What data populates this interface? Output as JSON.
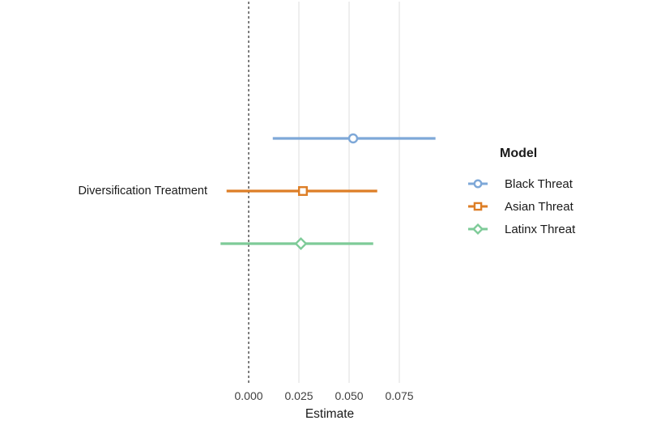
{
  "figure": {
    "background": "#ffffff"
  },
  "chart_data": {
    "type": "forest",
    "title": "",
    "xlabel": "Estimate",
    "ylabel": "",
    "categories": [
      "Diversification Treatment"
    ],
    "x_ticks": [
      0,
      0.025,
      0.05,
      0.075
    ],
    "x_tick_labels": [
      "0.000",
      "0.025",
      "0.050",
      "0.075"
    ],
    "xlim": [
      -0.018,
      0.1
    ],
    "zero_reference_line": 0,
    "grid": true,
    "grid_color": "#E5E5E5",
    "zero_line_color": "#2A2A2A",
    "text_color": "#1A1A1A",
    "tick_text_color": "#404040",
    "legend": {
      "title": "Model",
      "position": "right"
    },
    "series": [
      {
        "name": "Black Threat",
        "marker": "circle",
        "color": "#7EA8D8",
        "category": "Diversification Treatment",
        "estimate": 0.052,
        "ci_low": 0.012,
        "ci_high": 0.093
      },
      {
        "name": "Asian Threat",
        "marker": "square",
        "color": "#DD7E26",
        "category": "Diversification Treatment",
        "estimate": 0.027,
        "ci_low": -0.011,
        "ci_high": 0.064
      },
      {
        "name": "Latinx Threat",
        "marker": "diamond",
        "color": "#7ECB98",
        "category": "Diversification Treatment",
        "estimate": 0.026,
        "ci_low": -0.014,
        "ci_high": 0.062
      }
    ]
  }
}
